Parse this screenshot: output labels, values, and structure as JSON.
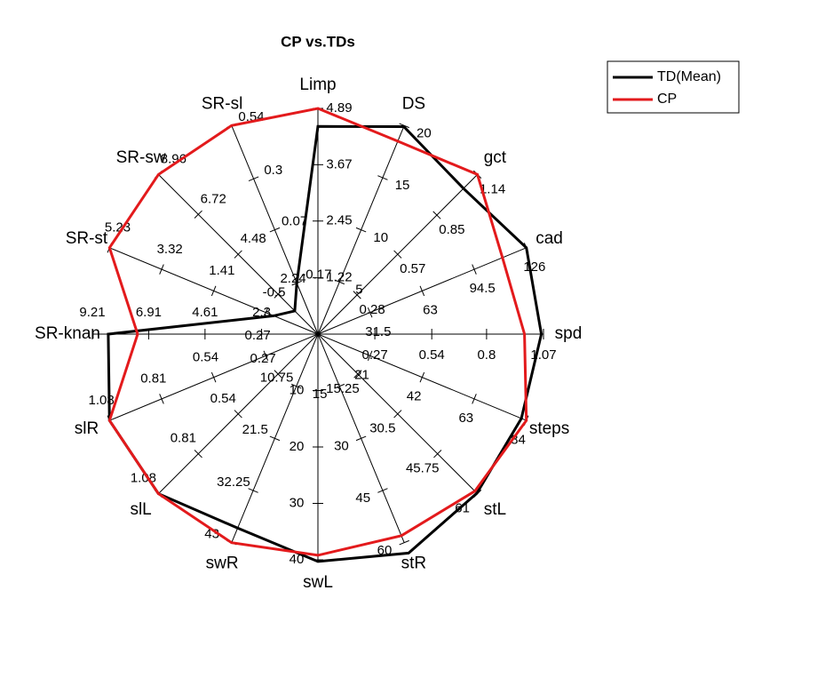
{
  "chart_data": {
    "type": "radar",
    "title": "CP vs.TDs",
    "axes": [
      {
        "name": "Limp",
        "lim": [
          0,
          4.89
        ],
        "ticks": [
          1.22,
          2.45,
          3.67,
          4.89
        ]
      },
      {
        "name": "DS",
        "lim": [
          0,
          20
        ],
        "ticks": [
          5,
          10,
          15,
          20
        ]
      },
      {
        "name": "gct",
        "lim": [
          0,
          1.14
        ],
        "ticks": [
          0.28,
          0.57,
          0.85,
          1.14
        ]
      },
      {
        "name": "cad",
        "lim": [
          0,
          126
        ],
        "ticks": [
          31.5,
          63,
          94.5,
          126
        ]
      },
      {
        "name": "spd",
        "lim": [
          0,
          1.07
        ],
        "ticks": [
          0.27,
          0.54,
          0.8,
          1.07
        ]
      },
      {
        "name": "steps",
        "lim": [
          0,
          84
        ],
        "ticks": [
          21,
          42,
          63,
          84
        ]
      },
      {
        "name": "stL",
        "lim": [
          0,
          61
        ],
        "ticks": [
          15.25,
          30.5,
          45.75,
          61
        ]
      },
      {
        "name": "stR",
        "lim": [
          0,
          60
        ],
        "ticks": [
          15,
          30,
          45,
          60
        ]
      },
      {
        "name": "swL",
        "lim": [
          0,
          40
        ],
        "ticks": [
          10,
          20,
          30,
          40
        ]
      },
      {
        "name": "swR",
        "lim": [
          0,
          43
        ],
        "ticks": [
          10.75,
          21.5,
          32.25,
          43
        ]
      },
      {
        "name": "slL",
        "lim": [
          0,
          1.08
        ],
        "ticks": [
          0.27,
          0.54,
          0.81,
          1.08
        ]
      },
      {
        "name": "slR",
        "lim": [
          0,
          1.08
        ],
        "ticks": [
          0.27,
          0.54,
          0.81,
          1.08
        ]
      },
      {
        "name": "SR-knan",
        "lim": [
          0,
          9.21
        ],
        "ticks": [
          2.3,
          4.61,
          6.91,
          9.21
        ]
      },
      {
        "name": "SR-st",
        "lim": [
          -2.41,
          5.23
        ],
        "ticks": [
          -0.5,
          1.41,
          3.32,
          5.23
        ]
      },
      {
        "name": "SR-sw",
        "lim": [
          0,
          8.96
        ],
        "ticks": [
          2.24,
          4.48,
          6.72,
          8.96
        ]
      },
      {
        "name": "SR-sl",
        "lim": [
          -0.4,
          0.54
        ],
        "ticks": [
          -0.17,
          0.07,
          0.3,
          0.54
        ]
      }
    ],
    "series": [
      {
        "name": "TD(Mean)",
        "color": "#000000",
        "values": [
          4.5,
          19.9,
          1.04,
          126,
          1.06,
          82,
          60.8,
          63,
          40.3,
          40,
          1.08,
          1.08,
          8.56,
          -0.79,
          1.3,
          -0.17
        ]
      },
      {
        "name": "CP",
        "color": "#e31a1c",
        "values": [
          4.89,
          18.5,
          1.14,
          111.6,
          0.98,
          84,
          60,
          58,
          39.2,
          43,
          1.08,
          1.08,
          7.36,
          5.23,
          8.96,
          0.54
        ]
      }
    ],
    "legend": "top-right"
  }
}
